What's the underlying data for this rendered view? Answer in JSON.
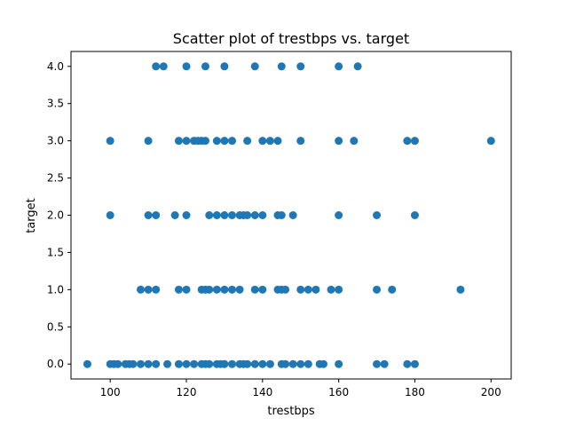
{
  "chart_data": {
    "type": "scatter",
    "title": "Scatter plot of trestbps vs. target",
    "xlabel": "trestbps",
    "ylabel": "target",
    "xlim": [
      89.7,
      205.3
    ],
    "ylim": [
      -0.2,
      4.2
    ],
    "xticks": [
      100,
      120,
      140,
      160,
      180,
      200
    ],
    "yticks": [
      0.0,
      0.5,
      1.0,
      1.5,
      2.0,
      2.5,
      3.0,
      3.5,
      4.0
    ],
    "xtick_labels": [
      "100",
      "120",
      "140",
      "160",
      "180",
      "200"
    ],
    "ytick_labels": [
      "0.0",
      "0.5",
      "1.0",
      "1.5",
      "2.0",
      "2.5",
      "3.0",
      "3.5",
      "4.0"
    ],
    "grid": false,
    "color": "#1f77b4",
    "series": [
      {
        "points": [
          [
            94,
            0
          ],
          [
            100,
            0
          ],
          [
            101,
            0
          ],
          [
            102,
            0
          ],
          [
            104,
            0
          ],
          [
            105,
            0
          ],
          [
            106,
            0
          ],
          [
            108,
            0
          ],
          [
            110,
            0
          ],
          [
            112,
            0
          ],
          [
            115,
            0
          ],
          [
            118,
            0
          ],
          [
            120,
            0
          ],
          [
            122,
            0
          ],
          [
            124,
            0
          ],
          [
            125,
            0
          ],
          [
            126,
            0
          ],
          [
            128,
            0
          ],
          [
            129,
            0
          ],
          [
            130,
            0
          ],
          [
            132,
            0
          ],
          [
            134,
            0
          ],
          [
            135,
            0
          ],
          [
            136,
            0
          ],
          [
            138,
            0
          ],
          [
            140,
            0
          ],
          [
            142,
            0
          ],
          [
            145,
            0
          ],
          [
            146,
            0
          ],
          [
            148,
            0
          ],
          [
            150,
            0
          ],
          [
            152,
            0
          ],
          [
            155,
            0
          ],
          [
            156,
            0
          ],
          [
            160,
            0
          ],
          [
            170,
            0
          ],
          [
            172,
            0
          ],
          [
            178,
            0
          ],
          [
            180,
            0
          ],
          [
            108,
            1
          ],
          [
            110,
            1
          ],
          [
            112,
            1
          ],
          [
            118,
            1
          ],
          [
            120,
            1
          ],
          [
            124,
            1
          ],
          [
            125,
            1
          ],
          [
            126,
            1
          ],
          [
            128,
            1
          ],
          [
            130,
            1
          ],
          [
            132,
            1
          ],
          [
            134,
            1
          ],
          [
            138,
            1
          ],
          [
            140,
            1
          ],
          [
            144,
            1
          ],
          [
            145,
            1
          ],
          [
            146,
            1
          ],
          [
            150,
            1
          ],
          [
            152,
            1
          ],
          [
            154,
            1
          ],
          [
            158,
            1
          ],
          [
            160,
            1
          ],
          [
            170,
            1
          ],
          [
            174,
            1
          ],
          [
            192,
            1
          ],
          [
            100,
            2
          ],
          [
            110,
            2
          ],
          [
            112,
            2
          ],
          [
            117,
            2
          ],
          [
            120,
            2
          ],
          [
            126,
            2
          ],
          [
            128,
            2
          ],
          [
            130,
            2
          ],
          [
            132,
            2
          ],
          [
            134,
            2
          ],
          [
            135,
            2
          ],
          [
            136,
            2
          ],
          [
            138,
            2
          ],
          [
            140,
            2
          ],
          [
            144,
            2
          ],
          [
            145,
            2
          ],
          [
            148,
            2
          ],
          [
            160,
            2
          ],
          [
            170,
            2
          ],
          [
            180,
            2
          ],
          [
            100,
            3
          ],
          [
            110,
            3
          ],
          [
            118,
            3
          ],
          [
            120,
            3
          ],
          [
            122,
            3
          ],
          [
            123,
            3
          ],
          [
            124,
            3
          ],
          [
            125,
            3
          ],
          [
            128,
            3
          ],
          [
            130,
            3
          ],
          [
            132,
            3
          ],
          [
            136,
            3
          ],
          [
            140,
            3
          ],
          [
            142,
            3
          ],
          [
            144,
            3
          ],
          [
            150,
            3
          ],
          [
            160,
            3
          ],
          [
            164,
            3
          ],
          [
            178,
            3
          ],
          [
            180,
            3
          ],
          [
            200,
            3
          ],
          [
            112,
            4
          ],
          [
            114,
            4
          ],
          [
            120,
            4
          ],
          [
            125,
            4
          ],
          [
            130,
            4
          ],
          [
            138,
            4
          ],
          [
            145,
            4
          ],
          [
            150,
            4
          ],
          [
            160,
            4
          ],
          [
            165,
            4
          ]
        ]
      }
    ]
  }
}
